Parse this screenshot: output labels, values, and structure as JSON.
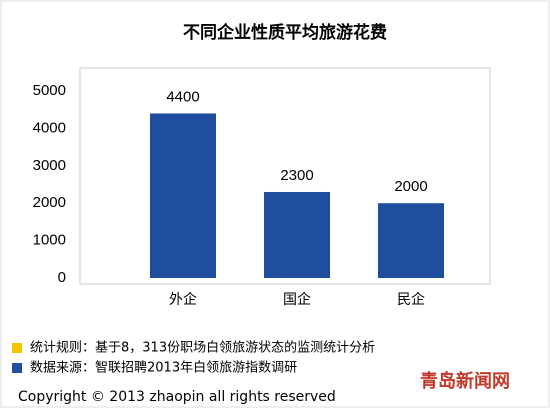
{
  "chart_data": {
    "type": "bar",
    "title": "不同企业性质平均旅游花费",
    "categories": [
      "外企",
      "国企",
      "民企"
    ],
    "values": [
      4400,
      2300,
      2000
    ],
    "color": "#1f4e9e",
    "ylim": [
      0,
      5000
    ],
    "yticks": [
      0,
      1000,
      2000,
      3000,
      4000,
      5000
    ],
    "grid": false,
    "notes": [
      {
        "text": "统计规则：基于8，313份职场白领旅游状态的监测统计分析",
        "color": "#f5c400"
      },
      {
        "text": "数据来源：智联招聘2013年白领旅游指数调研",
        "color": "#1f4e9e"
      }
    ],
    "footer": "Copyright © 2013 zhaopin all rights reserved",
    "watermark": "青岛新闻网"
  }
}
